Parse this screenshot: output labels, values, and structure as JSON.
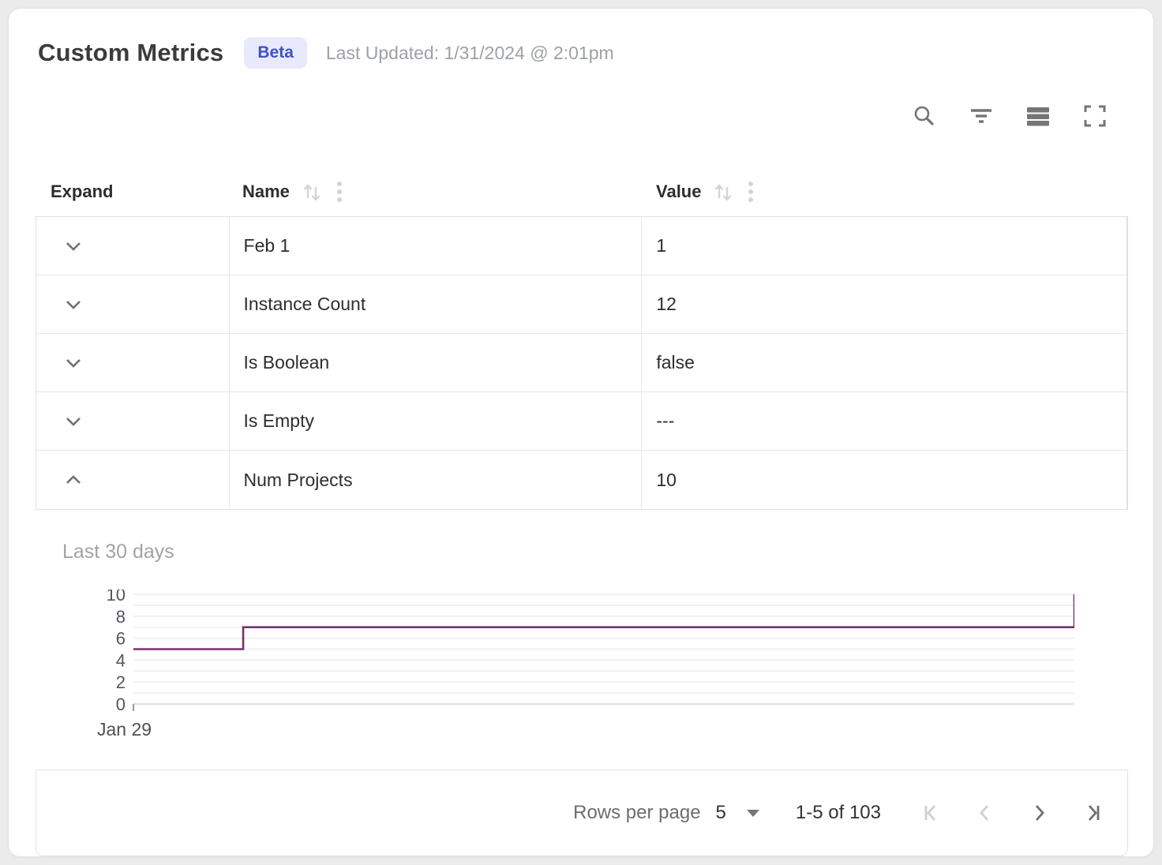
{
  "header": {
    "title": "Custom Metrics",
    "badge": "Beta",
    "last_updated": "Last Updated: 1/31/2024 @ 2:01pm"
  },
  "toolbar": {
    "icons": [
      "search",
      "filter",
      "density",
      "fullscreen"
    ]
  },
  "table": {
    "columns": [
      {
        "label": "Expand",
        "sortable": false
      },
      {
        "label": "Name",
        "sortable": true
      },
      {
        "label": "Value",
        "sortable": true
      }
    ],
    "rows": [
      {
        "name": "Feb 1",
        "value": "1",
        "expanded": false
      },
      {
        "name": "Instance Count",
        "value": "12",
        "expanded": false
      },
      {
        "name": "Is Boolean",
        "value": "false",
        "expanded": false
      },
      {
        "name": "Is Empty",
        "value": "---",
        "expanded": false
      },
      {
        "name": "Num Projects",
        "value": "10",
        "expanded": true
      }
    ]
  },
  "chart_data": {
    "type": "line",
    "title": "Last 30 days",
    "xlabel": "",
    "ylabel": "",
    "x_tick_labels": [
      "Jan 29"
    ],
    "xlim": [
      0,
      30
    ],
    "ylim": [
      0,
      10
    ],
    "yticks": [
      0,
      2,
      4,
      6,
      8,
      10
    ],
    "gridline_step": 1,
    "grid": true,
    "legend": false,
    "line_color": "#76336e",
    "points": [
      {
        "x": 0,
        "y": 5
      },
      {
        "x": 3.5,
        "y": 5
      },
      {
        "x": 3.5,
        "y": 7
      },
      {
        "x": 30,
        "y": 7
      },
      {
        "x": 30,
        "y": 10
      }
    ]
  },
  "footer": {
    "rows_per_page_label": "Rows per page",
    "rows_per_page_value": "5",
    "range_label": "1-5 of 103",
    "pagination": {
      "first_enabled": false,
      "prev_enabled": false,
      "next_enabled": true,
      "last_enabled": true
    }
  },
  "colors": {
    "badge_bg": "#e8eafb",
    "badge_text": "#4150c5",
    "accent_line": "#76336e",
    "icon_gray": "#757575",
    "disabled_icon": "#cfcfcf"
  }
}
